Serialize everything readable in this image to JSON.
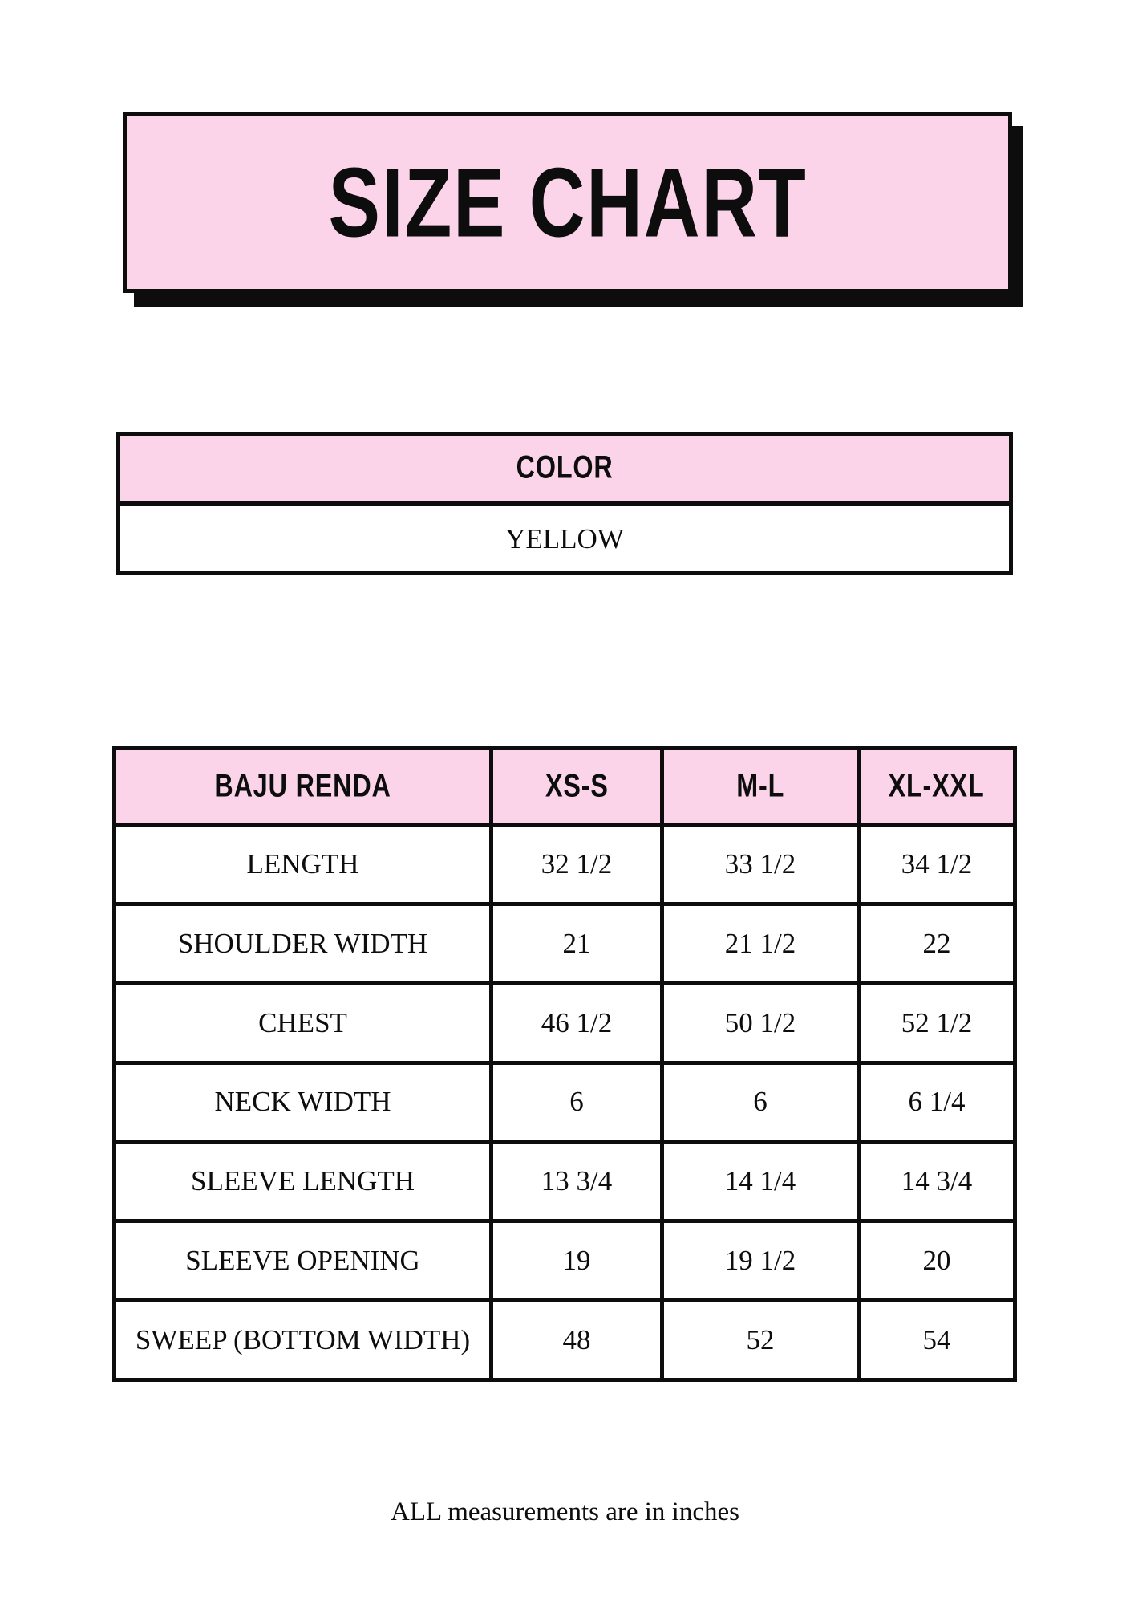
{
  "title_banner": {
    "text": "SIZE CHART"
  },
  "color_table": {
    "header": "COLOR",
    "value": "YELLOW"
  },
  "size_table": {
    "header_row": [
      "BAJU RENDA",
      "XS-S",
      "M-L",
      "XL-XXL"
    ],
    "rows": [
      {
        "label": "LENGTH",
        "values": [
          "32 1/2",
          "33 1/2",
          "34 1/2"
        ]
      },
      {
        "label": "SHOULDER WIDTH",
        "values": [
          "21",
          "21 1/2",
          "22"
        ]
      },
      {
        "label": "CHEST",
        "values": [
          "46 1/2",
          "50 1/2",
          "52 1/2"
        ]
      },
      {
        "label": "NECK WIDTH",
        "values": [
          "6",
          "6",
          "6 1/4"
        ]
      },
      {
        "label": "SLEEVE LENGTH",
        "values": [
          "13 3/4",
          "14 1/4",
          "14 3/4"
        ]
      },
      {
        "label": "SLEEVE OPENING",
        "values": [
          "19",
          "19 1/2",
          "20"
        ]
      },
      {
        "label": "SWEEP (BOTTOM WIDTH)",
        "values": [
          "48",
          "52",
          "54"
        ]
      }
    ]
  },
  "footer": {
    "note": "ALL measurements are in inches"
  },
  "colors": {
    "pink": "#fbd4ea",
    "ink": "#0d0d0d",
    "paper": "#ffffff"
  }
}
